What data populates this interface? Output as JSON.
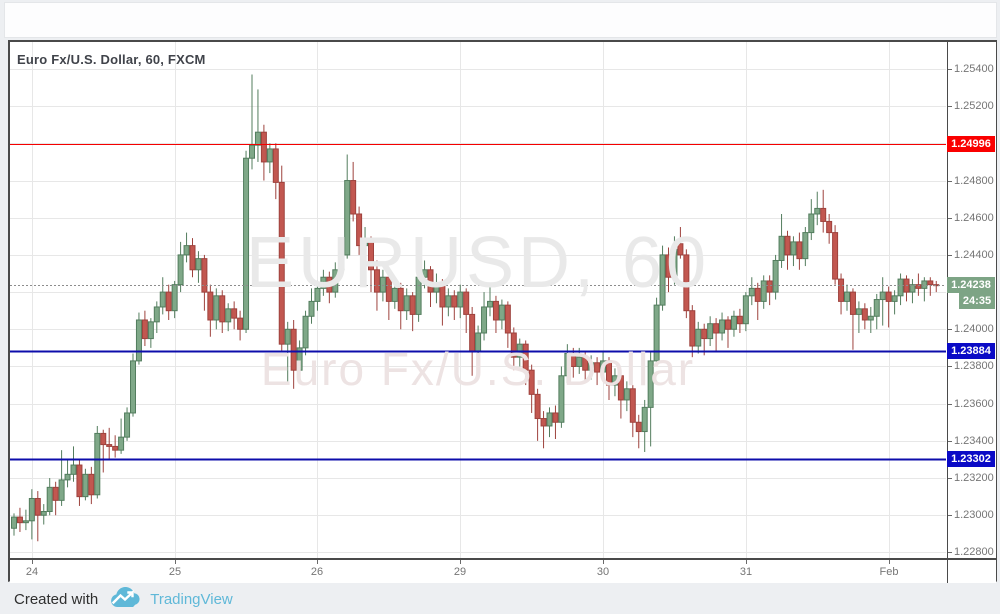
{
  "header": {
    "title": "Euro Fx/U.S. Dollar, 60, FXCM"
  },
  "watermark": {
    "line1": "EURUSD, 60",
    "line2": "Euro Fx/U.S. Dollar"
  },
  "footer": {
    "created_with": "Created with",
    "brand": "TradingView"
  },
  "colors": {
    "page_bg": "#edeff2",
    "plot_bg": "#ffffff",
    "up_fill": "#7fa888",
    "up_border": "#537d5e",
    "down_fill": "#c25750",
    "down_border": "#9e423d",
    "grid": "#e7e7e7",
    "axis_text": "#757575",
    "frame_border": "#4a4a4a",
    "red_line": "#f50000",
    "blue_line": "#0d0dab",
    "current_line": "#8c8c8c",
    "red_badge_bg": "#fa0000",
    "blue_badge_bg": "#0a0ac6",
    "current_badge_bg": "#7da485",
    "brand_blue": "#5fb8d8"
  },
  "price_axis": {
    "labels": [
      {
        "value": 1.254,
        "text": "1.25400"
      },
      {
        "value": 1.252,
        "text": "1.25200"
      },
      {
        "value": 1.248,
        "text": "1.24800"
      },
      {
        "value": 1.246,
        "text": "1.24600"
      },
      {
        "value": 1.244,
        "text": "1.24400"
      },
      {
        "value": 1.24,
        "text": "1.24000"
      },
      {
        "value": 1.238,
        "text": "1.23800"
      },
      {
        "value": 1.236,
        "text": "1.23600"
      },
      {
        "value": 1.234,
        "text": "1.23400"
      },
      {
        "value": 1.232,
        "text": "1.23200"
      },
      {
        "value": 1.23,
        "text": "1.23000"
      },
      {
        "value": 1.228,
        "text": "1.22800"
      }
    ],
    "grid_values": [
      1.254,
      1.252,
      1.25,
      1.248,
      1.246,
      1.244,
      1.242,
      1.24,
      1.238,
      1.236,
      1.234,
      1.232,
      1.23,
      1.228
    ]
  },
  "time_axis": {
    "labels": [
      {
        "text": "24",
        "candle_index": 3
      },
      {
        "text": "25",
        "candle_index": 27
      },
      {
        "text": "26",
        "candle_index": 51
      },
      {
        "text": "29",
        "candle_index": 75
      },
      {
        "text": "30",
        "candle_index": 99
      },
      {
        "text": "31",
        "candle_index": 123
      },
      {
        "text": "Feb",
        "candle_index": 147
      }
    ]
  },
  "levels": [
    {
      "price": 1.24996,
      "label": "1.24996",
      "line": "red",
      "width": 1
    },
    {
      "price": 1.23884,
      "label": "1.23884",
      "line": "blue",
      "width": 2
    },
    {
      "price": 1.23302,
      "label": "1.23302",
      "line": "blue",
      "width": 2
    }
  ],
  "current_price": {
    "price": 1.24238,
    "label": "1.24238",
    "countdown": "24:35"
  },
  "chart_data": {
    "type": "candlestick",
    "title": "Euro Fx/U.S. Dollar, 60, FXCM",
    "symbol": "EURUSD",
    "interval": "60",
    "exchange": "FXCM",
    "ylim": [
      1.2277,
      1.25545
    ],
    "grid": true,
    "columns": [
      "open",
      "high",
      "low",
      "close"
    ],
    "candles": [
      [
        1.2293,
        1.2301,
        1.2289,
        1.2299
      ],
      [
        1.2299,
        1.2304,
        1.2291,
        1.2296
      ],
      [
        1.2296,
        1.2303,
        1.2292,
        1.2297
      ],
      [
        1.2297,
        1.2314,
        1.2287,
        1.2309
      ],
      [
        1.2309,
        1.2313,
        1.2286,
        1.23
      ],
      [
        1.23,
        1.2306,
        1.2295,
        1.2302
      ],
      [
        1.2302,
        1.232,
        1.23,
        1.2315
      ],
      [
        1.2315,
        1.2318,
        1.23,
        1.2308
      ],
      [
        1.2308,
        1.2335,
        1.2305,
        1.2319
      ],
      [
        1.2319,
        1.233,
        1.2315,
        1.2322
      ],
      [
        1.2322,
        1.2337,
        1.2318,
        1.2327
      ],
      [
        1.2327,
        1.233,
        1.2305,
        1.231
      ],
      [
        1.231,
        1.2325,
        1.2308,
        1.2322
      ],
      [
        1.2322,
        1.2326,
        1.2306,
        1.2311
      ],
      [
        1.2311,
        1.2348,
        1.2309,
        1.2344
      ],
      [
        1.2344,
        1.2346,
        1.2323,
        1.2338
      ],
      [
        1.2338,
        1.2347,
        1.233,
        1.2337
      ],
      [
        1.2337,
        1.2343,
        1.2331,
        1.2335
      ],
      [
        1.2335,
        1.2352,
        1.2333,
        1.2342
      ],
      [
        1.2342,
        1.2358,
        1.234,
        1.2355
      ],
      [
        1.2355,
        1.2387,
        1.2353,
        1.2383
      ],
      [
        1.2383,
        1.2409,
        1.2381,
        1.2405
      ],
      [
        1.2405,
        1.241,
        1.2391,
        1.2395
      ],
      [
        1.2395,
        1.2406,
        1.239,
        1.2404
      ],
      [
        1.2404,
        1.2415,
        1.2398,
        1.2412
      ],
      [
        1.2412,
        1.2428,
        1.2408,
        1.242
      ],
      [
        1.242,
        1.2424,
        1.2405,
        1.241
      ],
      [
        1.241,
        1.2426,
        1.2406,
        1.2424
      ],
      [
        1.2424,
        1.2447,
        1.242,
        1.244
      ],
      [
        1.244,
        1.2452,
        1.2436,
        1.2445
      ],
      [
        1.2445,
        1.2449,
        1.2428,
        1.2432
      ],
      [
        1.2432,
        1.2442,
        1.2425,
        1.2438
      ],
      [
        1.2438,
        1.244,
        1.241,
        1.242
      ],
      [
        1.242,
        1.2424,
        1.2396,
        1.2405
      ],
      [
        1.2405,
        1.2422,
        1.24,
        1.2418
      ],
      [
        1.2418,
        1.2421,
        1.2398,
        1.2404
      ],
      [
        1.2404,
        1.2414,
        1.2399,
        1.2411
      ],
      [
        1.2411,
        1.2415,
        1.24,
        1.2406
      ],
      [
        1.2406,
        1.241,
        1.2394,
        1.24
      ],
      [
        1.24,
        1.2496,
        1.2398,
        1.2492
      ],
      [
        1.2492,
        1.2537,
        1.2486,
        1.2499
      ],
      [
        1.2499,
        1.2529,
        1.249,
        1.2506
      ],
      [
        1.2506,
        1.251,
        1.248,
        1.249
      ],
      [
        1.249,
        1.25,
        1.2484,
        1.2497
      ],
      [
        1.2497,
        1.25,
        1.247,
        1.2479
      ],
      [
        1.2479,
        1.2488,
        1.2388,
        1.2392
      ],
      [
        1.2392,
        1.2404,
        1.2372,
        1.24
      ],
      [
        1.24,
        1.2405,
        1.2368,
        1.2378
      ],
      [
        1.2378,
        1.2394,
        1.2374,
        1.239
      ],
      [
        1.239,
        1.241,
        1.2386,
        1.2407
      ],
      [
        1.2407,
        1.2422,
        1.2403,
        1.2415
      ],
      [
        1.2415,
        1.2426,
        1.241,
        1.2422
      ],
      [
        1.2422,
        1.2432,
        1.2418,
        1.2428
      ],
      [
        1.2428,
        1.2431,
        1.2414,
        1.242
      ],
      [
        1.242,
        1.2436,
        1.2417,
        1.2432
      ],
      [
        1.2432,
        1.2444,
        1.2428,
        1.244
      ],
      [
        1.244,
        1.2494,
        1.2438,
        1.248
      ],
      [
        1.248,
        1.249,
        1.2458,
        1.2462
      ],
      [
        1.2462,
        1.2466,
        1.244,
        1.2445
      ],
      [
        1.2445,
        1.2455,
        1.244,
        1.2448
      ],
      [
        1.2448,
        1.245,
        1.242,
        1.2432
      ],
      [
        1.2432,
        1.2437,
        1.241,
        1.242
      ],
      [
        1.242,
        1.2432,
        1.2415,
        1.2428
      ],
      [
        1.2428,
        1.243,
        1.2405,
        1.2415
      ],
      [
        1.2415,
        1.2427,
        1.2411,
        1.2422
      ],
      [
        1.2422,
        1.2425,
        1.24,
        1.241
      ],
      [
        1.241,
        1.2422,
        1.2405,
        1.2418
      ],
      [
        1.2418,
        1.242,
        1.2399,
        1.2408
      ],
      [
        1.2408,
        1.2433,
        1.2404,
        1.2428
      ],
      [
        1.2428,
        1.2437,
        1.2422,
        1.2432
      ],
      [
        1.2432,
        1.2434,
        1.2412,
        1.242
      ],
      [
        1.242,
        1.243,
        1.2414,
        1.2425
      ],
      [
        1.2425,
        1.2427,
        1.2402,
        1.2412
      ],
      [
        1.2412,
        1.2422,
        1.2407,
        1.2418
      ],
      [
        1.2418,
        1.2421,
        1.2405,
        1.2412
      ],
      [
        1.2412,
        1.2424,
        1.2406,
        1.242
      ],
      [
        1.242,
        1.2422,
        1.2398,
        1.2408
      ],
      [
        1.2408,
        1.2412,
        1.2375,
        1.2388
      ],
      [
        1.2388,
        1.2402,
        1.2383,
        1.2398
      ],
      [
        1.2398,
        1.242,
        1.2394,
        1.2412
      ],
      [
        1.2412,
        1.2425,
        1.2407,
        1.2415
      ],
      [
        1.2415,
        1.2418,
        1.2398,
        1.2405
      ],
      [
        1.2405,
        1.2416,
        1.24,
        1.2413
      ],
      [
        1.2413,
        1.2415,
        1.239,
        1.2398
      ],
      [
        1.2398,
        1.2401,
        1.2378,
        1.2385
      ],
      [
        1.2385,
        1.2395,
        1.238,
        1.2392
      ],
      [
        1.2392,
        1.2394,
        1.237,
        1.2378
      ],
      [
        1.2378,
        1.2381,
        1.2355,
        1.2365
      ],
      [
        1.2365,
        1.2368,
        1.234,
        1.2352
      ],
      [
        1.2352,
        1.2356,
        1.2336,
        1.2348
      ],
      [
        1.2348,
        1.2358,
        1.2342,
        1.2355
      ],
      [
        1.2355,
        1.2359,
        1.2341,
        1.235
      ],
      [
        1.235,
        1.238,
        1.2347,
        1.2375
      ],
      [
        1.2375,
        1.2392,
        1.2371,
        1.2387
      ],
      [
        1.2387,
        1.239,
        1.2374,
        1.238
      ],
      [
        1.238,
        1.239,
        1.2376,
        1.2385
      ],
      [
        1.2385,
        1.2388,
        1.2372,
        1.2378
      ],
      [
        1.2378,
        1.2386,
        1.2373,
        1.2382
      ],
      [
        1.2382,
        1.2385,
        1.237,
        1.2377
      ],
      [
        1.2377,
        1.2388,
        1.2372,
        1.2383
      ],
      [
        1.2383,
        1.2385,
        1.2362,
        1.237
      ],
      [
        1.237,
        1.2379,
        1.2364,
        1.2375
      ],
      [
        1.2375,
        1.2377,
        1.2352,
        1.2362
      ],
      [
        1.2362,
        1.2372,
        1.2356,
        1.2368
      ],
      [
        1.2368,
        1.237,
        1.2342,
        1.235
      ],
      [
        1.235,
        1.2354,
        1.2336,
        1.2345
      ],
      [
        1.2345,
        1.2362,
        1.2334,
        1.2358
      ],
      [
        1.2358,
        1.2388,
        1.2337,
        1.2383
      ],
      [
        1.2383,
        1.2417,
        1.238,
        1.2413
      ],
      [
        1.2413,
        1.2445,
        1.241,
        1.244
      ],
      [
        1.244,
        1.2444,
        1.242,
        1.2428
      ],
      [
        1.2428,
        1.245,
        1.2424,
        1.2443
      ],
      [
        1.2446,
        1.2455,
        1.2438,
        1.244
      ],
      [
        1.244,
        1.2443,
        1.2406,
        1.241
      ],
      [
        1.241,
        1.2413,
        1.2385,
        1.2391
      ],
      [
        1.2391,
        1.2404,
        1.2387,
        1.24
      ],
      [
        1.24,
        1.2403,
        1.2386,
        1.2395
      ],
      [
        1.2395,
        1.2407,
        1.2391,
        1.2403
      ],
      [
        1.2403,
        1.2406,
        1.2388,
        1.2398
      ],
      [
        1.2398,
        1.2409,
        1.2394,
        1.2405
      ],
      [
        1.2405,
        1.2407,
        1.239,
        1.24
      ],
      [
        1.24,
        1.241,
        1.2396,
        1.2407
      ],
      [
        1.2407,
        1.2411,
        1.2398,
        1.2403
      ],
      [
        1.2403,
        1.242,
        1.2399,
        1.2418
      ],
      [
        1.2418,
        1.2428,
        1.2413,
        1.2422
      ],
      [
        1.2422,
        1.2425,
        1.2405,
        1.2415
      ],
      [
        1.2415,
        1.2429,
        1.2411,
        1.2426
      ],
      [
        1.2426,
        1.2429,
        1.2413,
        1.242
      ],
      [
        1.242,
        1.244,
        1.2416,
        1.2437
      ],
      [
        1.2437,
        1.2462,
        1.2433,
        1.245
      ],
      [
        1.245,
        1.2453,
        1.2432,
        1.244
      ],
      [
        1.244,
        1.245,
        1.2434,
        1.2447
      ],
      [
        1.2447,
        1.2452,
        1.2432,
        1.2438
      ],
      [
        1.2438,
        1.2455,
        1.2434,
        1.2452
      ],
      [
        1.2452,
        1.247,
        1.2448,
        1.2462
      ],
      [
        1.2462,
        1.2474,
        1.2456,
        1.2465
      ],
      [
        1.2465,
        1.2475,
        1.2452,
        1.2458
      ],
      [
        1.2458,
        1.2462,
        1.2446,
        1.2452
      ],
      [
        1.2452,
        1.2456,
        1.2424,
        1.2427
      ],
      [
        1.2427,
        1.243,
        1.2408,
        1.2415
      ],
      [
        1.2415,
        1.2424,
        1.241,
        1.242
      ],
      [
        1.242,
        1.2422,
        1.2389,
        1.2408
      ],
      [
        1.2408,
        1.2415,
        1.2398,
        1.2411
      ],
      [
        1.2411,
        1.2414,
        1.24,
        1.2405
      ],
      [
        1.2405,
        1.2412,
        1.2398,
        1.2407
      ],
      [
        1.2407,
        1.2419,
        1.24,
        1.2416
      ],
      [
        1.2416,
        1.2428,
        1.2402,
        1.242
      ],
      [
        1.242,
        1.2423,
        1.2401,
        1.2415
      ],
      [
        1.2415,
        1.2421,
        1.2408,
        1.2418
      ],
      [
        1.2418,
        1.243,
        1.2413,
        1.2427
      ],
      [
        1.2427,
        1.2429,
        1.2415,
        1.242
      ],
      [
        1.242,
        1.2427,
        1.2414,
        1.2424
      ],
      [
        1.2424,
        1.243,
        1.2418,
        1.2422
      ],
      [
        1.2422,
        1.2428,
        1.2415,
        1.2426
      ],
      [
        1.2426,
        1.2428,
        1.2418,
        1.2424
      ],
      [
        1.2424,
        1.2426,
        1.242,
        1.24238
      ]
    ]
  }
}
